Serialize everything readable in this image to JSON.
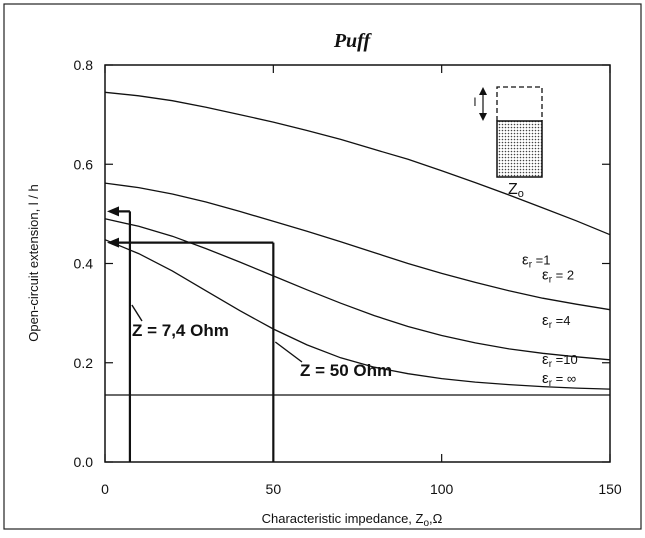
{
  "chart_data": {
    "type": "line",
    "title": "Puff",
    "xlabel": "Characteristic impedance, Z",
    "xlabel_sub": "o",
    "xlabel_unit": ",Ω",
    "ylabel": "Open-circuit extension, l / h",
    "xlim": [
      0,
      150
    ],
    "ylim": [
      0,
      0.8
    ],
    "x_ticks": [
      0,
      50,
      100,
      150
    ],
    "x_tick_labels": [
      "0",
      "50",
      "100",
      "150"
    ],
    "y_ticks": [
      0,
      0.2,
      0.4,
      0.6,
      0.8
    ],
    "y_tick_labels": [
      "0.0",
      "0.2",
      "0.4",
      "0.6",
      "0.8"
    ],
    "grid": false,
    "series": [
      {
        "name": "εr = 1",
        "label_prefix": "ε",
        "label_sub": "r",
        "label_suffix": " =1",
        "x": [
          0,
          10,
          20,
          30,
          40,
          50,
          60,
          70,
          80,
          90,
          100,
          110,
          120,
          130,
          140,
          150
        ],
        "y": [
          0.745,
          0.738,
          0.728,
          0.715,
          0.7,
          0.685,
          0.668,
          0.65,
          0.63,
          0.61,
          0.587,
          0.563,
          0.538,
          0.512,
          0.486,
          0.458
        ]
      },
      {
        "name": "εr = 2",
        "label_prefix": "ε",
        "label_sub": "r",
        "label_suffix": " = 2",
        "x": [
          0,
          10,
          20,
          30,
          40,
          50,
          60,
          70,
          80,
          90,
          100,
          110,
          120,
          130,
          140,
          150
        ],
        "y": [
          0.562,
          0.553,
          0.54,
          0.524,
          0.505,
          0.485,
          0.465,
          0.444,
          0.422,
          0.4,
          0.38,
          0.362,
          0.345,
          0.33,
          0.318,
          0.307
        ]
      },
      {
        "name": "εr = 4",
        "label_prefix": "ε",
        "label_sub": "r",
        "label_suffix": " =4",
        "x": [
          0,
          10,
          20,
          30,
          40,
          50,
          60,
          70,
          80,
          90,
          100,
          110,
          120,
          130,
          140,
          150
        ],
        "y": [
          0.49,
          0.475,
          0.455,
          0.43,
          0.403,
          0.375,
          0.347,
          0.32,
          0.295,
          0.273,
          0.255,
          0.24,
          0.228,
          0.219,
          0.212,
          0.206
        ]
      },
      {
        "name": "εr = 10",
        "label_prefix": "ε",
        "label_sub": "r",
        "label_suffix": " =10",
        "x": [
          0,
          10,
          20,
          30,
          40,
          50,
          60,
          70,
          80,
          90,
          100,
          110,
          120,
          130,
          140,
          150
        ],
        "y": [
          0.448,
          0.42,
          0.385,
          0.345,
          0.305,
          0.268,
          0.236,
          0.21,
          0.191,
          0.178,
          0.168,
          0.161,
          0.156,
          0.152,
          0.149,
          0.147
        ]
      },
      {
        "name": "εr = ∞",
        "label_prefix": "ε",
        "label_sub": "r",
        "label_suffix": " = ∞",
        "x": [
          0,
          150
        ],
        "y": [
          0.135,
          0.135
        ]
      }
    ],
    "annotations": [
      {
        "text": "Z = 7,4  Ohm",
        "z": 7.4,
        "level": 0.505
      },
      {
        "text": "Z = 50  Ohm",
        "z": 50,
        "level": 0.442
      }
    ],
    "inset": {
      "label": "Z",
      "label_sub": "o",
      "dimension_label": "l"
    }
  }
}
